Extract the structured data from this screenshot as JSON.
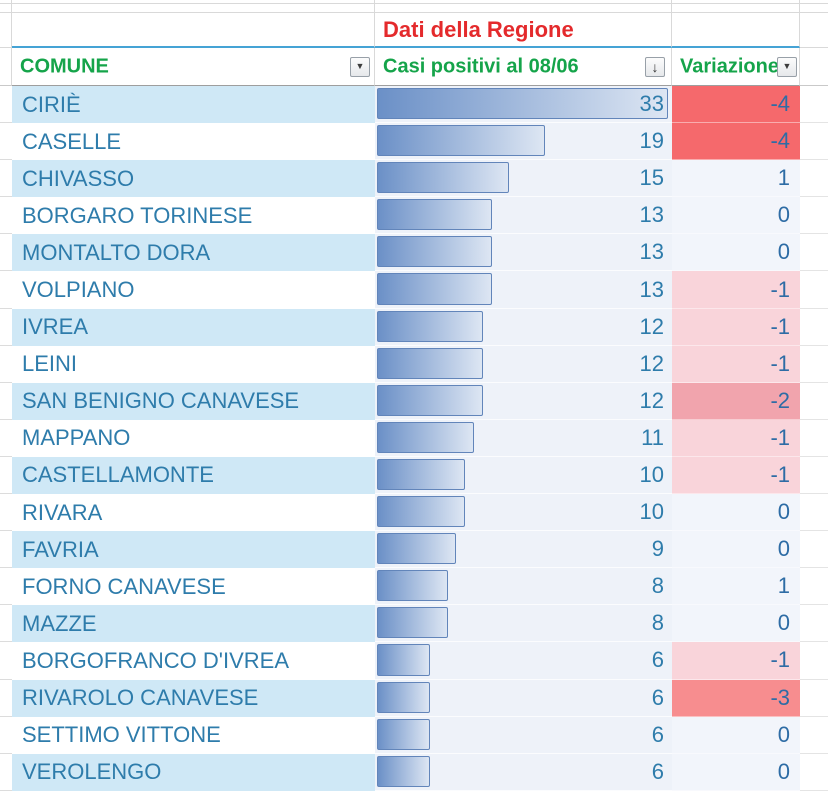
{
  "title_row": {
    "label": "Dati della Regione"
  },
  "table": {
    "headers": {
      "comune": "COMUNE",
      "casi": "Casi positivi al 08/06",
      "variazione": "Variazione"
    },
    "rows": [
      {
        "comune": "CIRIÈ",
        "casi": 33,
        "variazione": -4
      },
      {
        "comune": "CASELLE",
        "casi": 19,
        "variazione": -4
      },
      {
        "comune": "CHIVASSO",
        "casi": 15,
        "variazione": 1
      },
      {
        "comune": "BORGARO TORINESE",
        "casi": 13,
        "variazione": 0
      },
      {
        "comune": "MONTALTO DORA",
        "casi": 13,
        "variazione": 0
      },
      {
        "comune": "VOLPIANO",
        "casi": 13,
        "variazione": -1
      },
      {
        "comune": "IVREA",
        "casi": 12,
        "variazione": -1
      },
      {
        "comune": "LEINI",
        "casi": 12,
        "variazione": -1
      },
      {
        "comune": "SAN BENIGNO CANAVESE",
        "casi": 12,
        "variazione": -2
      },
      {
        "comune": "MAPPANO",
        "casi": 11,
        "variazione": -1
      },
      {
        "comune": "CASTELLAMONTE",
        "casi": 10,
        "variazione": -1
      },
      {
        "comune": "RIVARA",
        "casi": 10,
        "variazione": 0
      },
      {
        "comune": "FAVRIA",
        "casi": 9,
        "variazione": 0
      },
      {
        "comune": "FORNO CANAVESE",
        "casi": 8,
        "variazione": 1
      },
      {
        "comune": "MAZZE",
        "casi": 8,
        "variazione": 0
      },
      {
        "comune": "BORGOFRANCO D'IVREA",
        "casi": 6,
        "variazione": -1
      },
      {
        "comune": "RIVAROLO CANAVESE",
        "casi": 6,
        "variazione": -3
      },
      {
        "comune": "SETTIMO VITTONE",
        "casi": 6,
        "variazione": 0
      },
      {
        "comune": "VEROLENGO",
        "casi": 6,
        "variazione": 0
      }
    ]
  },
  "icons": {
    "comune_filter": "▼",
    "casi_sort": "↓",
    "variazione_filter": "▼"
  },
  "colors": {
    "title_red": "#e42a2c",
    "header_green": "#15a44a",
    "text_blue": "#2e7cab",
    "row_alt_blue": "#cfe8f6",
    "casi_bg": "#eef2f9",
    "bar_start": "#6b90c7",
    "bar_end": "#dde6f3",
    "bar_border": "#6285ba",
    "variation_bg": {
      "-1": "#f9d4da",
      "-2": "#f1a4ad",
      "-3": "#f78d8f",
      "-4": "#f5696c"
    }
  }
}
